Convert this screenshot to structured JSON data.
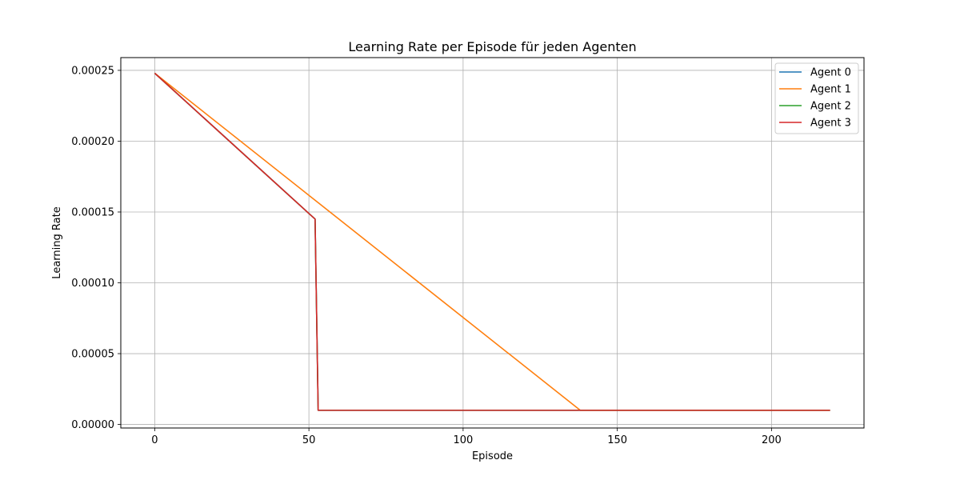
{
  "chart_data": {
    "type": "line",
    "title": "Learning Rate per Episode für jeden Agenten",
    "xlabel": "Episode",
    "ylabel": "Learning Rate",
    "xlim": [
      -11,
      230
    ],
    "ylim": [
      -2.5e-06,
      0.000259
    ],
    "xticks": [
      0,
      50,
      100,
      150,
      200
    ],
    "yticks": [
      0.0,
      5e-05,
      0.0001,
      0.00015,
      0.0002,
      0.00025
    ],
    "ytick_labels": [
      "0.00000",
      "0.00005",
      "0.00010",
      "0.00015",
      "0.00020",
      "0.00025"
    ],
    "xtick_labels": [
      "0",
      "50",
      "100",
      "150",
      "200"
    ],
    "grid": true,
    "legend_position": "top-right",
    "series": [
      {
        "name": "Agent 0",
        "color": "#1f77b4",
        "points": [
          [
            0,
            0.000248
          ],
          [
            52,
            0.000145
          ],
          [
            53,
            1e-05
          ],
          [
            219,
            1e-05
          ]
        ]
      },
      {
        "name": "Agent 1",
        "color": "#ff7f0e",
        "points": [
          [
            0,
            0.000248
          ],
          [
            138,
            1e-05
          ],
          [
            219,
            1e-05
          ]
        ]
      },
      {
        "name": "Agent 2",
        "color": "#2ca02c",
        "points": [
          [
            0,
            0.000248
          ],
          [
            52,
            0.000145
          ],
          [
            53,
            1e-05
          ],
          [
            219,
            1e-05
          ]
        ]
      },
      {
        "name": "Agent 3",
        "color": "#d62728",
        "points": [
          [
            0,
            0.000248
          ],
          [
            52,
            0.000145
          ],
          [
            53,
            1e-05
          ],
          [
            219,
            1e-05
          ]
        ]
      }
    ]
  }
}
